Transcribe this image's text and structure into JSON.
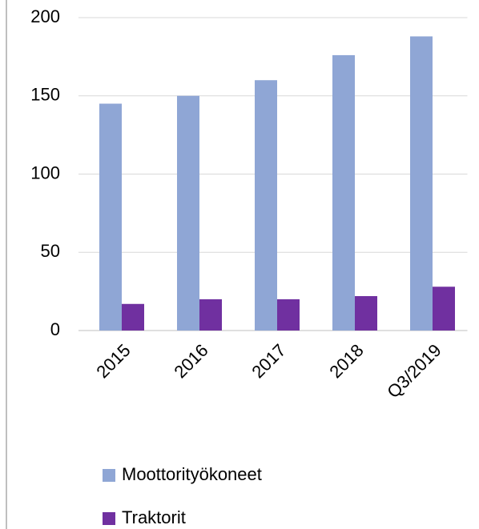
{
  "chart_data": {
    "type": "bar",
    "categories": [
      "2015",
      "2016",
      "2017",
      "2018",
      "Q3/2019"
    ],
    "series": [
      {
        "name": "Moottorityökoneet",
        "color": "#8fa6d5",
        "values": [
          145,
          150,
          160,
          176,
          188
        ]
      },
      {
        "name": "Traktorit",
        "color": "#7030a0",
        "values": [
          17,
          20,
          20,
          22,
          28
        ]
      }
    ],
    "ylim": [
      0,
      200
    ],
    "yticks": [
      0,
      50,
      100,
      150,
      200
    ],
    "grid": true,
    "legend": "bottom"
  }
}
